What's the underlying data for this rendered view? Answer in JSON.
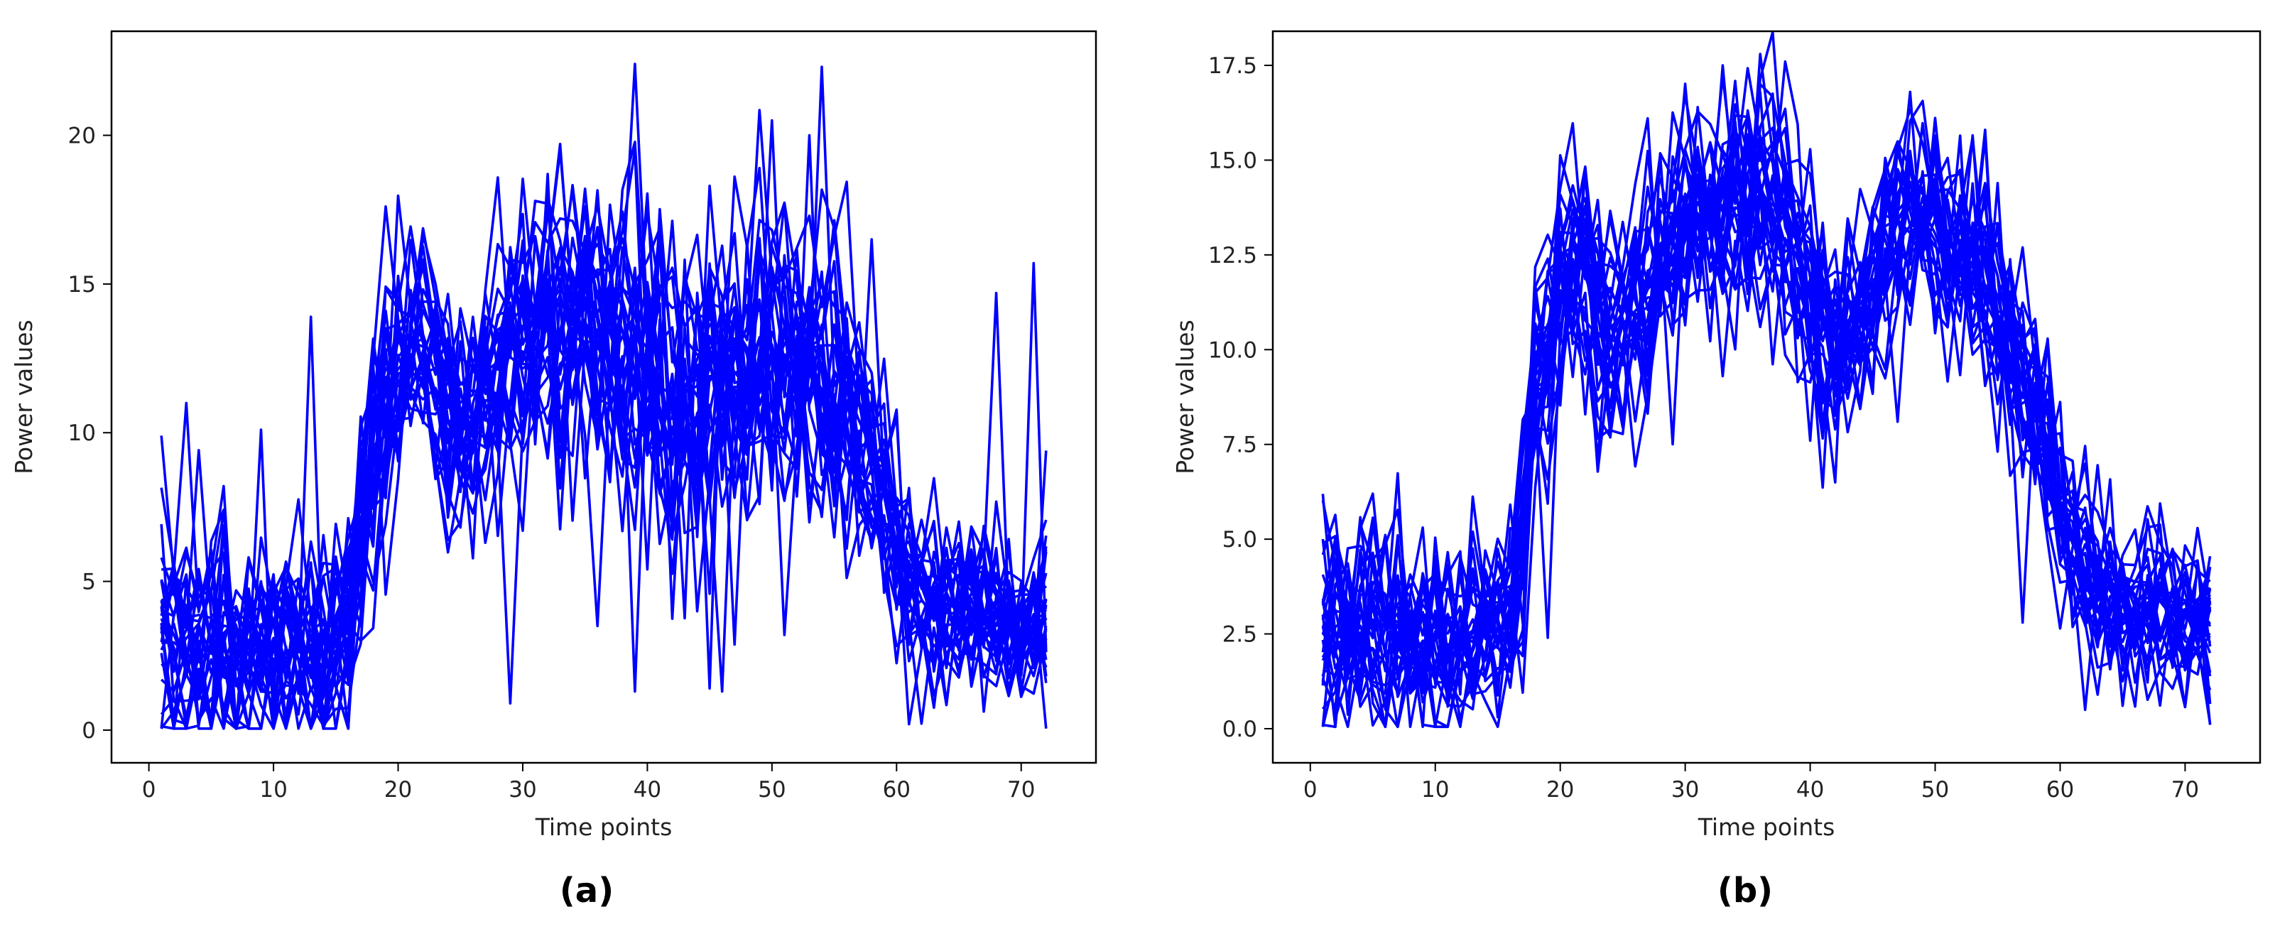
{
  "chart_data": [
    {
      "type": "line",
      "panel_label": "(a)",
      "xlabel": "Time points",
      "ylabel": "Power values",
      "xlim": [
        -3,
        76
      ],
      "ylim": [
        -1.1,
        23.5
      ],
      "xticks": [
        0,
        10,
        20,
        30,
        40,
        50,
        60,
        70
      ],
      "yticks": [
        0,
        5,
        10,
        15,
        20
      ],
      "ytick_labels": [
        "0",
        "5",
        "10",
        "15",
        "20"
      ],
      "n_points": 72,
      "line_color": "#0000ff",
      "grid": false,
      "envelope": {
        "x": [
          1,
          4,
          8,
          12,
          16,
          18,
          20,
          22,
          24,
          26,
          28,
          30,
          32,
          34,
          36,
          38,
          40,
          42,
          44,
          46,
          48,
          50,
          52,
          54,
          56,
          58,
          60,
          62,
          66,
          70,
          72
        ],
        "mean": [
          3.2,
          2.8,
          2.6,
          2.6,
          3.0,
          9.5,
          12.2,
          12.6,
          11.0,
          10.6,
          12.4,
          12.8,
          13.4,
          13.6,
          13.5,
          12.8,
          12.0,
          11.5,
          11.0,
          11.5,
          12.5,
          13.0,
          12.6,
          12.0,
          10.5,
          9.0,
          6.5,
          4.5,
          3.7,
          3.4,
          3.3
        ],
        "spread": [
          2.4,
          2.2,
          2.1,
          2.2,
          2.0,
          2.6,
          2.2,
          2.0,
          2.2,
          2.3,
          2.4,
          2.5,
          2.6,
          2.7,
          2.8,
          3.0,
          3.0,
          3.0,
          3.0,
          3.0,
          2.9,
          2.8,
          2.6,
          2.6,
          2.6,
          2.4,
          2.0,
          1.7,
          1.5,
          1.5,
          1.5
        ]
      },
      "series_count": 30,
      "outliers": [
        {
          "series": 0,
          "x": 39,
          "y": 22.4
        },
        {
          "series": 0,
          "x": 29,
          "y": 0.9
        },
        {
          "series": 1,
          "x": 54,
          "y": 22.3
        },
        {
          "series": 1,
          "x": 13,
          "y": 13.9
        },
        {
          "series": 2,
          "x": 50,
          "y": 20.5
        },
        {
          "series": 3,
          "x": 32,
          "y": 18.7
        },
        {
          "series": 4,
          "x": 39,
          "y": 1.3
        },
        {
          "series": 5,
          "x": 71,
          "y": 15.7
        },
        {
          "series": 6,
          "x": 68,
          "y": 14.7
        },
        {
          "series": 7,
          "x": 58,
          "y": 16.5
        },
        {
          "series": 8,
          "x": 36,
          "y": 3.5
        },
        {
          "series": 9,
          "x": 45,
          "y": 1.4
        },
        {
          "series": 10,
          "x": 1,
          "y": 9.9
        },
        {
          "series": 11,
          "x": 3,
          "y": 11.0
        },
        {
          "series": 12,
          "x": 9,
          "y": 10.1
        },
        {
          "series": 13,
          "x": 27,
          "y": 6.3
        },
        {
          "series": 14,
          "x": 51,
          "y": 3.2
        },
        {
          "series": 15,
          "x": 46,
          "y": 1.3
        },
        {
          "series": 16,
          "x": 72,
          "y": 9.4
        },
        {
          "series": 17,
          "x": 45,
          "y": 18.3
        },
        {
          "series": 18,
          "x": 53,
          "y": 20.0
        },
        {
          "series": 19,
          "x": 61,
          "y": 0.2
        }
      ],
      "seed": 11
    },
    {
      "type": "line",
      "panel_label": "(b)",
      "xlabel": "Time points",
      "ylabel": "Power values",
      "xlim": [
        -3,
        76
      ],
      "ylim": [
        -0.9,
        18.4
      ],
      "xticks": [
        0,
        10,
        20,
        30,
        40,
        50,
        60,
        70
      ],
      "yticks": [
        0,
        2.5,
        5,
        7.5,
        10,
        12.5,
        15,
        17.5
      ],
      "ytick_labels": [
        "0.0",
        "2.5",
        "5.0",
        "7.5",
        "10.0",
        "12.5",
        "15.0",
        "17.5"
      ],
      "n_points": 72,
      "line_color": "#0000ff",
      "grid": false,
      "envelope": {
        "x": [
          1,
          4,
          8,
          12,
          16,
          17,
          18,
          20,
          22,
          24,
          26,
          28,
          30,
          32,
          34,
          36,
          38,
          40,
          42,
          44,
          46,
          48,
          50,
          52,
          54,
          56,
          58,
          60,
          62,
          66,
          70,
          72
        ],
        "mean": [
          2.8,
          2.6,
          2.4,
          2.4,
          2.7,
          4.5,
          9.5,
          11.6,
          12.0,
          10.6,
          10.9,
          12.2,
          12.8,
          13.8,
          14.1,
          14.2,
          13.4,
          11.3,
          10.4,
          11.3,
          12.6,
          13.4,
          13.1,
          12.6,
          11.9,
          10.6,
          8.6,
          5.6,
          4.3,
          3.3,
          2.9,
          2.8
        ],
        "spread": [
          1.7,
          1.6,
          1.6,
          1.5,
          1.5,
          1.6,
          1.8,
          1.8,
          1.7,
          1.6,
          1.6,
          1.7,
          1.7,
          1.7,
          1.8,
          1.9,
          1.9,
          1.7,
          1.6,
          1.6,
          1.6,
          1.6,
          1.6,
          1.6,
          1.6,
          1.5,
          1.5,
          1.4,
          1.3,
          1.2,
          1.2,
          1.2
        ]
      },
      "series_count": 30,
      "outliers": [
        {
          "series": 0,
          "x": 36,
          "y": 17.8
        },
        {
          "series": 1,
          "x": 33,
          "y": 17.5
        },
        {
          "series": 2,
          "x": 38,
          "y": 17.6
        },
        {
          "series": 3,
          "x": 48,
          "y": 16.8
        },
        {
          "series": 4,
          "x": 27,
          "y": 16.1
        },
        {
          "series": 5,
          "x": 19,
          "y": 2.4
        },
        {
          "series": 6,
          "x": 40,
          "y": 7.6
        },
        {
          "series": 7,
          "x": 42,
          "y": 6.5
        },
        {
          "series": 8,
          "x": 57,
          "y": 2.8
        },
        {
          "series": 9,
          "x": 33,
          "y": 9.3
        },
        {
          "series": 10,
          "x": 72,
          "y": 0.1
        },
        {
          "series": 11,
          "x": 1,
          "y": 0.1
        },
        {
          "series": 12,
          "x": 5,
          "y": 6.2
        },
        {
          "series": 13,
          "x": 53,
          "y": 15.6
        },
        {
          "series": 14,
          "x": 62,
          "y": 0.5
        }
      ],
      "seed": 29
    }
  ]
}
